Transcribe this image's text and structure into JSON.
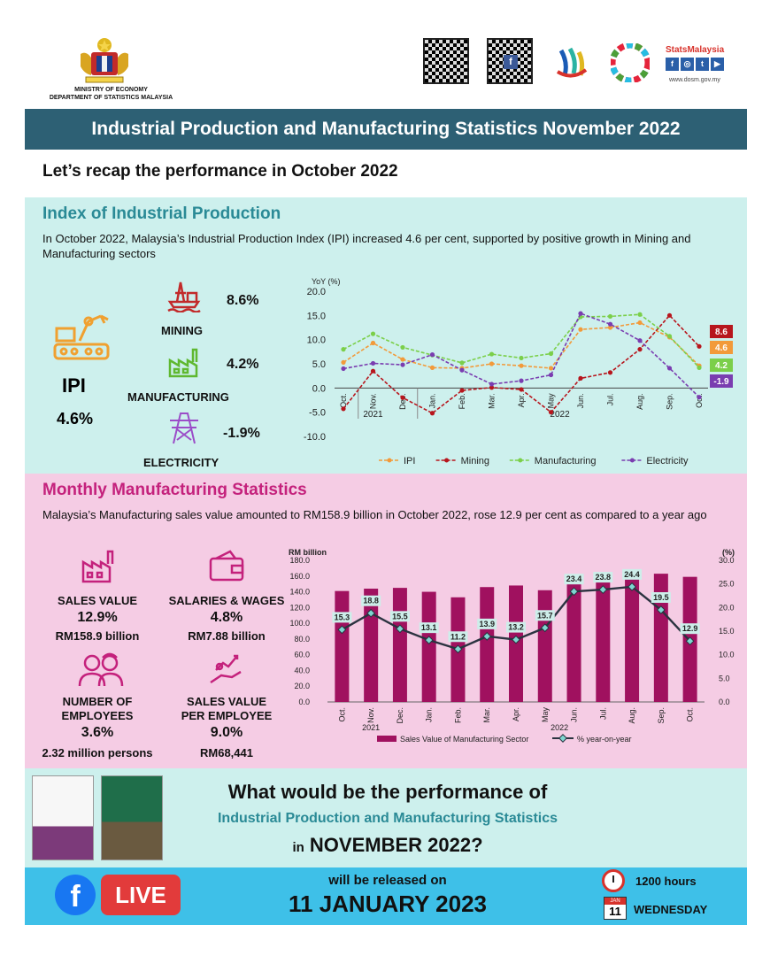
{
  "header": {
    "ministry_line1": "MINISTRY OF ECONOMY",
    "ministry_line2": "DEPARTMENT OF STATISTICS MALAYSIA",
    "statsmalaysia": "StatsMalaysia",
    "url": "www.dosm.gov.my",
    "title": "Industrial Production and Manufacturing Statistics November 2022"
  },
  "recap": "Let’s recap the performance in October 2022",
  "ipi": {
    "title": "Index of Industrial Production",
    "description": "In October 2022, Malaysia’s Industrial Production Index (IPI) increased 4.6 per cent, supported by positive growth in Mining and Manufacturing sectors",
    "label": "IPI",
    "value": "4.6%",
    "mining_label": "MINING",
    "mining_value": "8.6%",
    "manufacturing_label": "MANUFACTURING",
    "manufacturing_value": "4.2%",
    "electricity_label": "ELECTRICITY",
    "electricity_value": "-1.9%"
  },
  "mfg": {
    "title": "Monthly Manufacturing Statistics",
    "description": "Malaysia’s Manufacturing sales value amounted to RM158.9 billion in October 2022, rose 12.9 per cent as compared to a year ago",
    "sales_label": "SALES VALUE",
    "sales_pct": "12.9%",
    "sales_amt": "RM158.9 billion",
    "salaries_label": "SALARIES & WAGES",
    "salaries_pct": "4.8%",
    "salaries_amt": "RM7.88 billion",
    "employees_label1": "NUMBER OF",
    "employees_label2": "EMPLOYEES",
    "employees_pct": "3.6%",
    "employees_amt": "2.32 million persons",
    "spe_label1": "SALES VALUE",
    "spe_label2": "PER EMPLOYEE",
    "spe_pct": "9.0%",
    "spe_amt": "RM68,441"
  },
  "bottom": {
    "q1": "What would be the performance of",
    "q2": "Industrial Production and Manufacturing Statistics",
    "q3_in": "in",
    "q3_main": "NOVEMBER 2022?",
    "live": "LIVE",
    "fb": "f",
    "released": "will be released on",
    "date": "11 JANUARY 2023",
    "hours": "1200 hours",
    "cal_month": "JAN",
    "cal_day": "11",
    "weekday": "WEDNESDAY"
  },
  "colors": {
    "teal": "#2d6074",
    "mint": "#cdf0ed",
    "pink": "#f5cce4",
    "magenta": "#a0115f"
  },
  "chart_data": [
    {
      "type": "line",
      "ylabel": "YoY (%)",
      "ylim": [
        -10,
        20
      ],
      "yticks": [
        "20.0",
        "15.0",
        "10.0",
        "5.0",
        "0.0",
        "-5.0",
        "-10.0"
      ],
      "categories": [
        "Oct.",
        "Nov.",
        "Dec.",
        "Jan.",
        "Feb.",
        "Mar.",
        "Apr.",
        "May",
        "Jun.",
        "Jul.",
        "Aug.",
        "Sep.",
        "Oct."
      ],
      "year_labels": [
        "2021",
        "2022"
      ],
      "series": [
        {
          "name": "IPI",
          "color": "#f29a3a",
          "values": [
            5.3,
            9.3,
            5.9,
            4.2,
            4.1,
            5.0,
            4.6,
            4.1,
            12.1,
            12.5,
            13.5,
            10.5,
            4.6
          ]
        },
        {
          "name": "Mining",
          "color": "#b7161d",
          "values": [
            -4.3,
            3.5,
            -2.0,
            -5.2,
            -0.5,
            0.1,
            -0.3,
            -5.0,
            2.0,
            3.2,
            8.0,
            15.0,
            8.6
          ]
        },
        {
          "name": "Manufacturing",
          "color": "#7bcf4a",
          "values": [
            8.0,
            11.2,
            8.4,
            6.8,
            5.2,
            7.0,
            6.2,
            7.1,
            14.7,
            14.8,
            15.2,
            10.7,
            4.2
          ]
        },
        {
          "name": "Electricity",
          "color": "#7a3db0",
          "values": [
            4.0,
            5.1,
            4.8,
            6.9,
            3.7,
            0.8,
            1.5,
            2.7,
            15.4,
            13.2,
            9.8,
            4.1,
            -1.9
          ]
        }
      ],
      "end_labels": [
        "8.6",
        "4.6",
        "4.2",
        "-1.9"
      ]
    },
    {
      "type": "bar",
      "ylabel_left": "RM billion",
      "ylabel_right": "(%)",
      "ylim_left": [
        0,
        180
      ],
      "ylim_right": [
        0,
        30
      ],
      "yticks_left": [
        "180.0",
        "160.0",
        "140.0",
        "120.0",
        "100.0",
        "80.0",
        "60.0",
        "40.0",
        "20.0",
        "0.0"
      ],
      "yticks_right": [
        "30.0",
        "25.0",
        "20.0",
        "15.0",
        "10.0",
        "5.0",
        "0.0"
      ],
      "categories": [
        "Oct.",
        "Nov.",
        "Dec.",
        "Jan.",
        "Feb.",
        "Mar.",
        "Apr.",
        "May",
        "Jun.",
        "Jul.",
        "Aug.",
        "Sep.",
        "Oct."
      ],
      "year_labels": [
        "2021",
        "2022"
      ],
      "series": [
        {
          "name": "Sales Value of Manufacturing Sector",
          "color": "#a0115f",
          "values": [
            141,
            144,
            145,
            140,
            133,
            146,
            148,
            142,
            155,
            156,
            157,
            163,
            159
          ]
        },
        {
          "name": "% year-on-year",
          "color": "#2b3340",
          "values": [
            15.3,
            18.8,
            15.5,
            13.1,
            11.2,
            13.9,
            13.2,
            15.7,
            23.4,
            23.8,
            24.4,
            19.5,
            12.9
          ]
        }
      ],
      "data_labels": [
        "15.3",
        "18.8",
        "15.5",
        "13.1",
        "11.2",
        "13.9",
        "13.2",
        "15.7",
        "23.4",
        "23.8",
        "24.4",
        "19.5",
        "12.9"
      ]
    }
  ]
}
